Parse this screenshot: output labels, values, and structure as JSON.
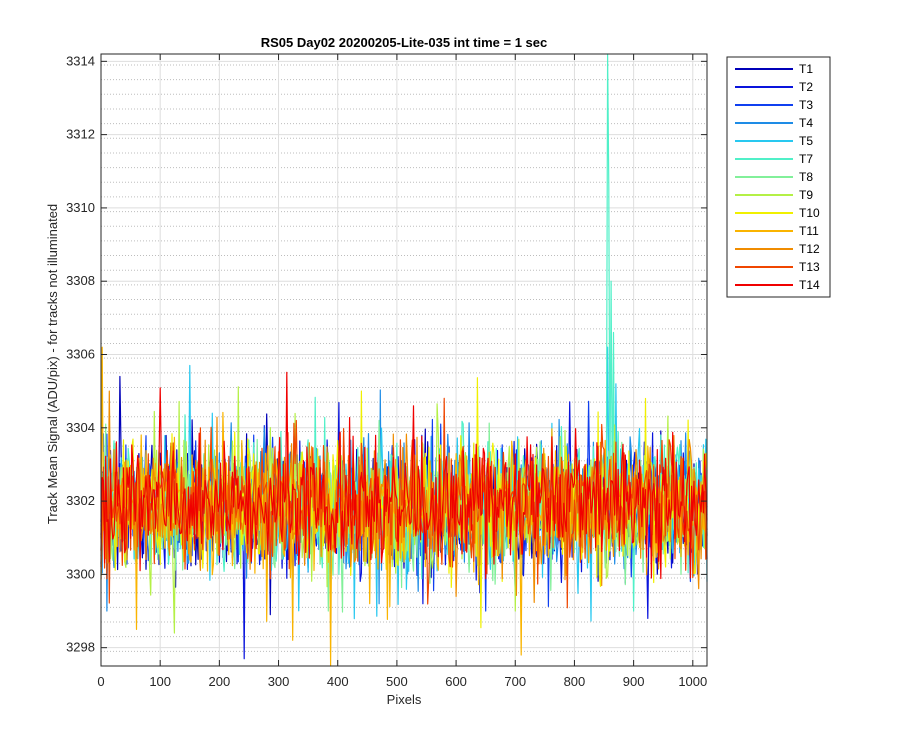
{
  "chart_data": {
    "type": "line",
    "title": "RS05 Day02 20200205-Lite-035 int time = 1 sec",
    "xlabel": "Pixels",
    "ylabel": "Track Mean Signal (ADU/pix) - for tracks not illuminated",
    "xlim": [
      0,
      1024
    ],
    "ylim": [
      3297.5,
      3314.2
    ],
    "xticks": [
      0,
      100,
      200,
      300,
      400,
      500,
      600,
      700,
      800,
      900,
      1000
    ],
    "yticks": [
      3298,
      3300,
      3302,
      3304,
      3306,
      3308,
      3310,
      3312,
      3314
    ],
    "grid": "major solid, minor dotted",
    "legend_position": "outside-right",
    "series": [
      {
        "name": "T1",
        "color": "#0000b8",
        "mean": 3301.8,
        "spikes": [
          [
            33,
            3305.4
          ],
          [
            860,
            3300.4
          ]
        ]
      },
      {
        "name": "T2",
        "color": "#0a14dc",
        "mean": 3301.8,
        "spikes": [
          [
            242,
            3297.7
          ],
          [
            545,
            3299.2
          ],
          [
            640,
            3299.5
          ]
        ]
      },
      {
        "name": "T3",
        "color": "#1040f0",
        "mean": 3301.9,
        "spikes": [
          [
            575,
            3304.1
          ],
          [
            650,
            3299.0
          ]
        ]
      },
      {
        "name": "T4",
        "color": "#1e8ce6",
        "mean": 3301.8,
        "spikes": [
          [
            10,
            3299.0
          ],
          [
            470,
            3299.2
          ],
          [
            700,
            3299.5
          ]
        ]
      },
      {
        "name": "T5",
        "color": "#28c8f0",
        "mean": 3301.9,
        "spikes": [
          [
            150,
            3305.7
          ],
          [
            857,
            3306.2
          ],
          [
            870,
            3305.2
          ]
        ]
      },
      {
        "name": "T7",
        "color": "#50f0c8",
        "mean": 3301.9,
        "spikes": [
          [
            856,
            3314.2
          ],
          [
            858,
            3310.6
          ],
          [
            862,
            3308.0
          ],
          [
            866,
            3306.6
          ],
          [
            900,
            3299.0
          ]
        ]
      },
      {
        "name": "T8",
        "color": "#82f09a",
        "mean": 3301.8,
        "spikes": [
          [
            385,
            3299.0
          ],
          [
            470,
            3304.2
          ]
        ]
      },
      {
        "name": "T9",
        "color": "#b4f046",
        "mean": 3301.8,
        "spikes": [
          [
            125,
            3298.4
          ],
          [
            700,
            3299.0
          ]
        ]
      },
      {
        "name": "T10",
        "color": "#f0f000",
        "mean": 3301.8,
        "spikes": [
          [
            440,
            3305.0
          ],
          [
            920,
            3304.8
          ]
        ]
      },
      {
        "name": "T11",
        "color": "#fab400",
        "mean": 3301.8,
        "spikes": [
          [
            3,
            3306.2
          ],
          [
            60,
            3298.5
          ],
          [
            325,
            3298.2
          ],
          [
            388,
            3297.5
          ],
          [
            710,
            3297.8
          ]
        ]
      },
      {
        "name": "T12",
        "color": "#f08c00",
        "mean": 3301.9,
        "spikes": [
          [
            15,
            3305.0
          ],
          [
            600,
            3299.4
          ]
        ]
      },
      {
        "name": "T13",
        "color": "#f04600",
        "mean": 3301.9,
        "spikes": [
          [
            330,
            3304.2
          ]
        ]
      },
      {
        "name": "T14",
        "color": "#f00000",
        "mean": 3302.0,
        "spikes": [
          [
            528,
            3304.6
          ]
        ]
      }
    ]
  }
}
